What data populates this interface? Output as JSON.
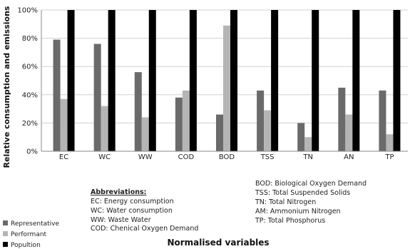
{
  "chart_data": {
    "type": "bar",
    "categories": [
      "EC",
      "WC",
      "WW",
      "COD",
      "BOD",
      "TSS",
      "TN",
      "AN",
      "TP"
    ],
    "series": [
      {
        "name": "Representative",
        "color": "#6a6a6a",
        "values": [
          79,
          76,
          56,
          38,
          26,
          43,
          20,
          45,
          43
        ]
      },
      {
        "name": "Performant",
        "color": "#b5b5b5",
        "values": [
          37,
          32,
          24,
          43,
          89,
          29,
          10,
          26,
          12
        ]
      },
      {
        "name": "Population",
        "color": "#000000",
        "values": [
          100,
          100,
          100,
          100,
          100,
          100,
          100,
          100,
          100
        ]
      }
    ],
    "ylim": [
      0,
      100
    ],
    "yticks": [
      "0%",
      "20%",
      "40%",
      "60%",
      "80%",
      "100%"
    ],
    "grid": true,
    "xlabel": "Normalised variables",
    "ylabel": "Relative consumption and emissions",
    "legend_position": "bottom-left"
  },
  "legend": {
    "items": [
      "Representative",
      "Performant",
      "Popultion"
    ]
  },
  "abbreviations": {
    "heading": "Abbreviations:",
    "left": [
      "EC: Energy consumption",
      "WC: Water consumption",
      "WW: Waste Water",
      "COD: Chenical Oxygen Demand"
    ],
    "right": [
      "BOD: Biological Oxygen Demand",
      "TSS: Total Suspended Solids",
      "TN: Total Nitrogen",
      "AM: Ammonium Nitrogen",
      "TP: Total Phosphorus"
    ]
  }
}
